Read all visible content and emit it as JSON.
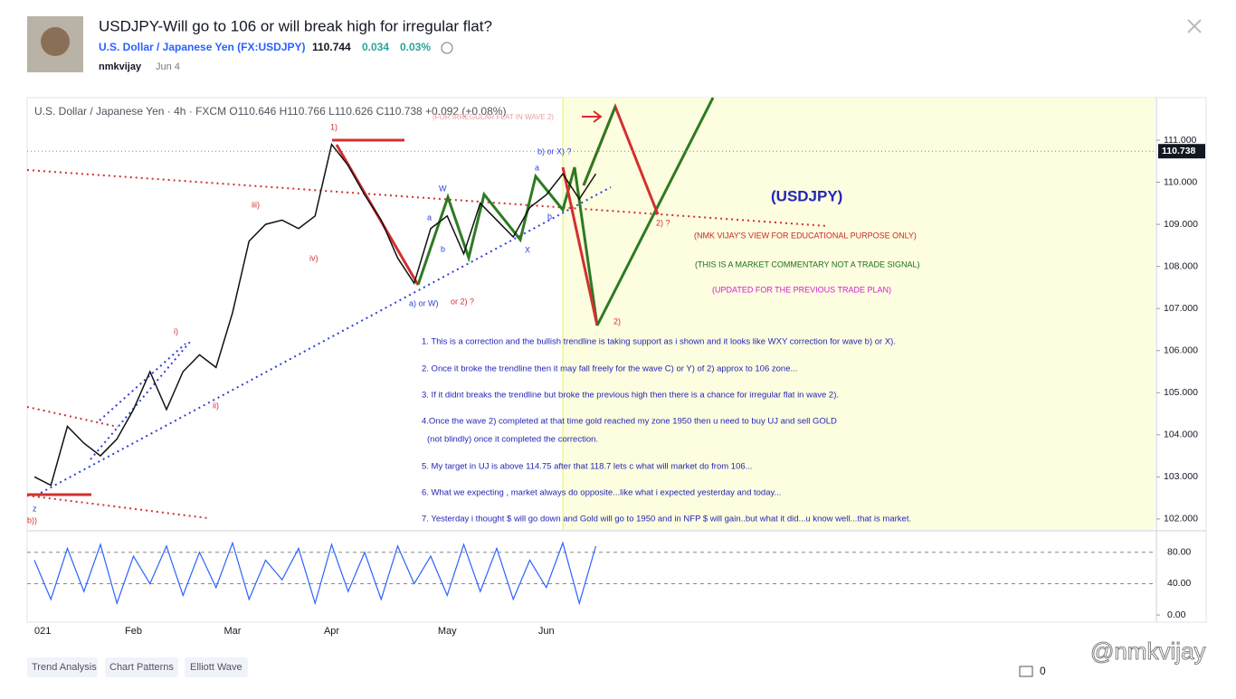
{
  "header": {
    "title": "USDJPY-Will go to 106 or will break high for irregular flat?",
    "symbol": "U.S. Dollar / Japanese Yen (FX:USDJPY)",
    "price": "110.744",
    "change": "0.034",
    "change_pct": "0.03%",
    "author": "nmkvijay",
    "date": "Jun 4"
  },
  "chart_data": {
    "type": "line",
    "title": "U.S. Dollar / Japanese Yen · 4h · FXCM  O110.646 H110.766 L110.626 C110.738 +0.092 (+0.08%)",
    "categories": [
      "021",
      null,
      null,
      null,
      null,
      null,
      "Feb",
      null,
      null,
      null,
      null,
      null,
      "Mar",
      null,
      null,
      null,
      null,
      null,
      "Apr",
      null,
      null,
      null,
      null,
      null,
      null,
      "May",
      null,
      null,
      null,
      null,
      null,
      "Jun",
      null,
      null,
      null
    ],
    "values": [
      103.0,
      102.8,
      104.2,
      103.8,
      103.5,
      103.9,
      104.6,
      105.5,
      104.6,
      105.5,
      105.9,
      105.6,
      106.9,
      108.6,
      109.0,
      109.1,
      108.9,
      109.2,
      110.9,
      110.4,
      109.7,
      109.1,
      108.2,
      107.6,
      108.9,
      109.2,
      108.3,
      109.5,
      109.1,
      108.7,
      109.4,
      109.7,
      110.2,
      109.6,
      110.2
    ],
    "color": "#111111",
    "ylim": [
      101.74,
      112.01
    ],
    "yticks": [
      {
        "value": 102,
        "label": "102.000"
      },
      {
        "value": 103,
        "label": "103.000"
      },
      {
        "value": 104,
        "label": "104.000"
      },
      {
        "value": 105,
        "label": "105.000"
      },
      {
        "value": 106,
        "label": "106.000"
      },
      {
        "value": 107,
        "label": "107.000"
      },
      {
        "value": 108,
        "label": "108.000"
      },
      {
        "value": 109,
        "label": "109.000"
      },
      {
        "value": 110,
        "label": "110.000"
      },
      {
        "value": 111,
        "label": "111.000"
      }
    ],
    "last_price": {
      "value": 110.738,
      "label": "110.738"
    },
    "annotations": [
      "1)",
      "iii)",
      "iv)",
      "i)",
      "ii)",
      "W",
      "a",
      "b",
      "X",
      "a",
      "b",
      "b) or X) ?",
      "a) or W)",
      "or 2) ?",
      "2)",
      "2) ?",
      "z",
      "b))",
      "(FOR IRREGULAR FLAT IN WAVE 2)",
      "(USDJPY)",
      "(NMK VIJAY'S VIEW FOR EDUCATIONAL PURPOSE ONLY)",
      "(THIS IS A MARKET COMMENTARY NOT A TRADE SIGNAL)",
      "(UPDATED FOR THE PREVIOUS TRADE PLAN)"
    ],
    "commentary": [
      "1. This is a correction and the bullish trendline is taking support as i shown and it looks like WXY correction for wave b) or X).",
      "2. Once it broke the trendline then it may fall freely for the wave C) or Y) of 2) approx to 106 zone...",
      "3. If it didnt breaks the trendline but broke the previous high then there is a chance for irregular flat in wave 2).",
      "4.Once the wave 2) completed  at that time gold reached my zone 1950  then u need to buy UJ and sell GOLD",
      "(not blindly) once it completed the correction.",
      "5. My target in UJ is above 114.75 after that 118.7 lets c what will market do from 106...",
      "6. What we expecting , market always do opposite...like what i expected yesterday and today...",
      "7.  Yesterday i thought $ will go down and Gold will go to 1950 and in NFP $ will gain..but what it did...u know well...that is market."
    ],
    "oscillator": {
      "values": [
        70,
        20,
        85,
        30,
        90,
        15,
        75,
        40,
        88,
        25,
        80,
        35,
        92,
        20,
        70,
        45,
        85,
        15,
        90,
        30,
        80,
        20,
        88,
        40,
        75,
        25,
        90,
        30,
        85,
        20,
        70,
        35,
        92,
        15,
        88
      ],
      "color": "#2962ff",
      "ylim": [
        -9.1,
        106.3
      ],
      "yticks": [
        {
          "value": 80,
          "label": "80.00"
        },
        {
          "value": 40,
          "label": "40.00"
        },
        {
          "value": 0,
          "label": "0.00"
        }
      ]
    }
  },
  "tags": [
    "Trend Analysis",
    "Chart Patterns",
    "Elliott Wave"
  ],
  "footer": {
    "comments": "0",
    "watermark": "@nmkvijay"
  }
}
